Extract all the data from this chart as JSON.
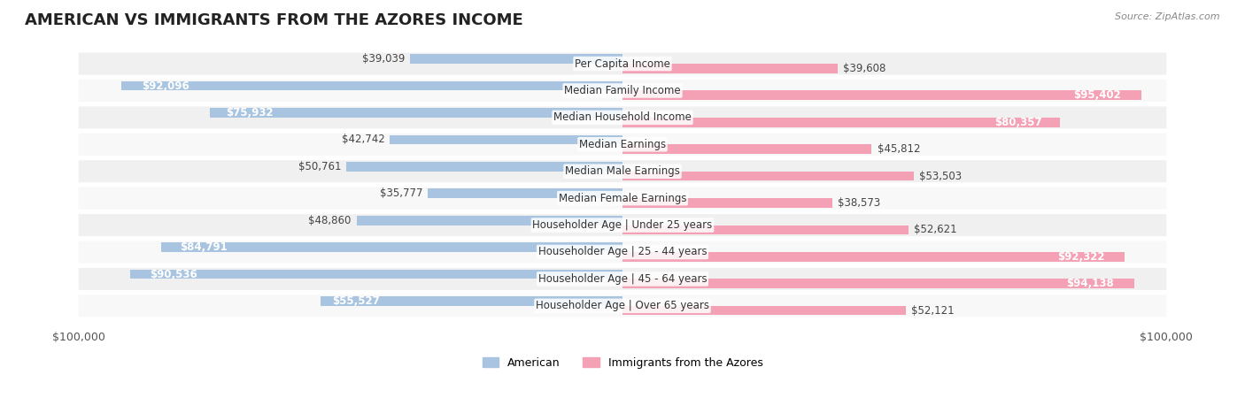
{
  "title": "AMERICAN VS IMMIGRANTS FROM THE AZORES INCOME",
  "source": "Source: ZipAtlas.com",
  "categories": [
    "Per Capita Income",
    "Median Family Income",
    "Median Household Income",
    "Median Earnings",
    "Median Male Earnings",
    "Median Female Earnings",
    "Householder Age | Under 25 years",
    "Householder Age | 25 - 44 years",
    "Householder Age | 45 - 64 years",
    "Householder Age | Over 65 years"
  ],
  "american_values": [
    39039,
    92096,
    75932,
    42742,
    50761,
    35777,
    48860,
    84791,
    90536,
    55527
  ],
  "immigrant_values": [
    39608,
    95402,
    80357,
    45812,
    53503,
    38573,
    52621,
    92322,
    94138,
    52121
  ],
  "american_labels": [
    "$39,039",
    "$92,096",
    "$75,932",
    "$42,742",
    "$50,761",
    "$35,777",
    "$48,860",
    "$84,791",
    "$90,536",
    "$55,527"
  ],
  "immigrant_labels": [
    "$39,608",
    "$95,402",
    "$80,357",
    "$45,812",
    "$53,503",
    "$38,573",
    "$52,621",
    "$92,322",
    "$94,138",
    "$52,121"
  ],
  "american_color": "#a8c4e0",
  "immigrant_color": "#f4a0b5",
  "american_color_dark": "#85a9d0",
  "immigrant_color_dark": "#f080a0",
  "max_value": 100000,
  "bg_color": "#ffffff",
  "row_bg_color": "#f0f0f0",
  "row_alt_color": "#f8f8f8",
  "title_fontsize": 13,
  "label_fontsize": 8.5,
  "legend_label_american": "American",
  "legend_label_immigrant": "Immigrants from the Azores"
}
